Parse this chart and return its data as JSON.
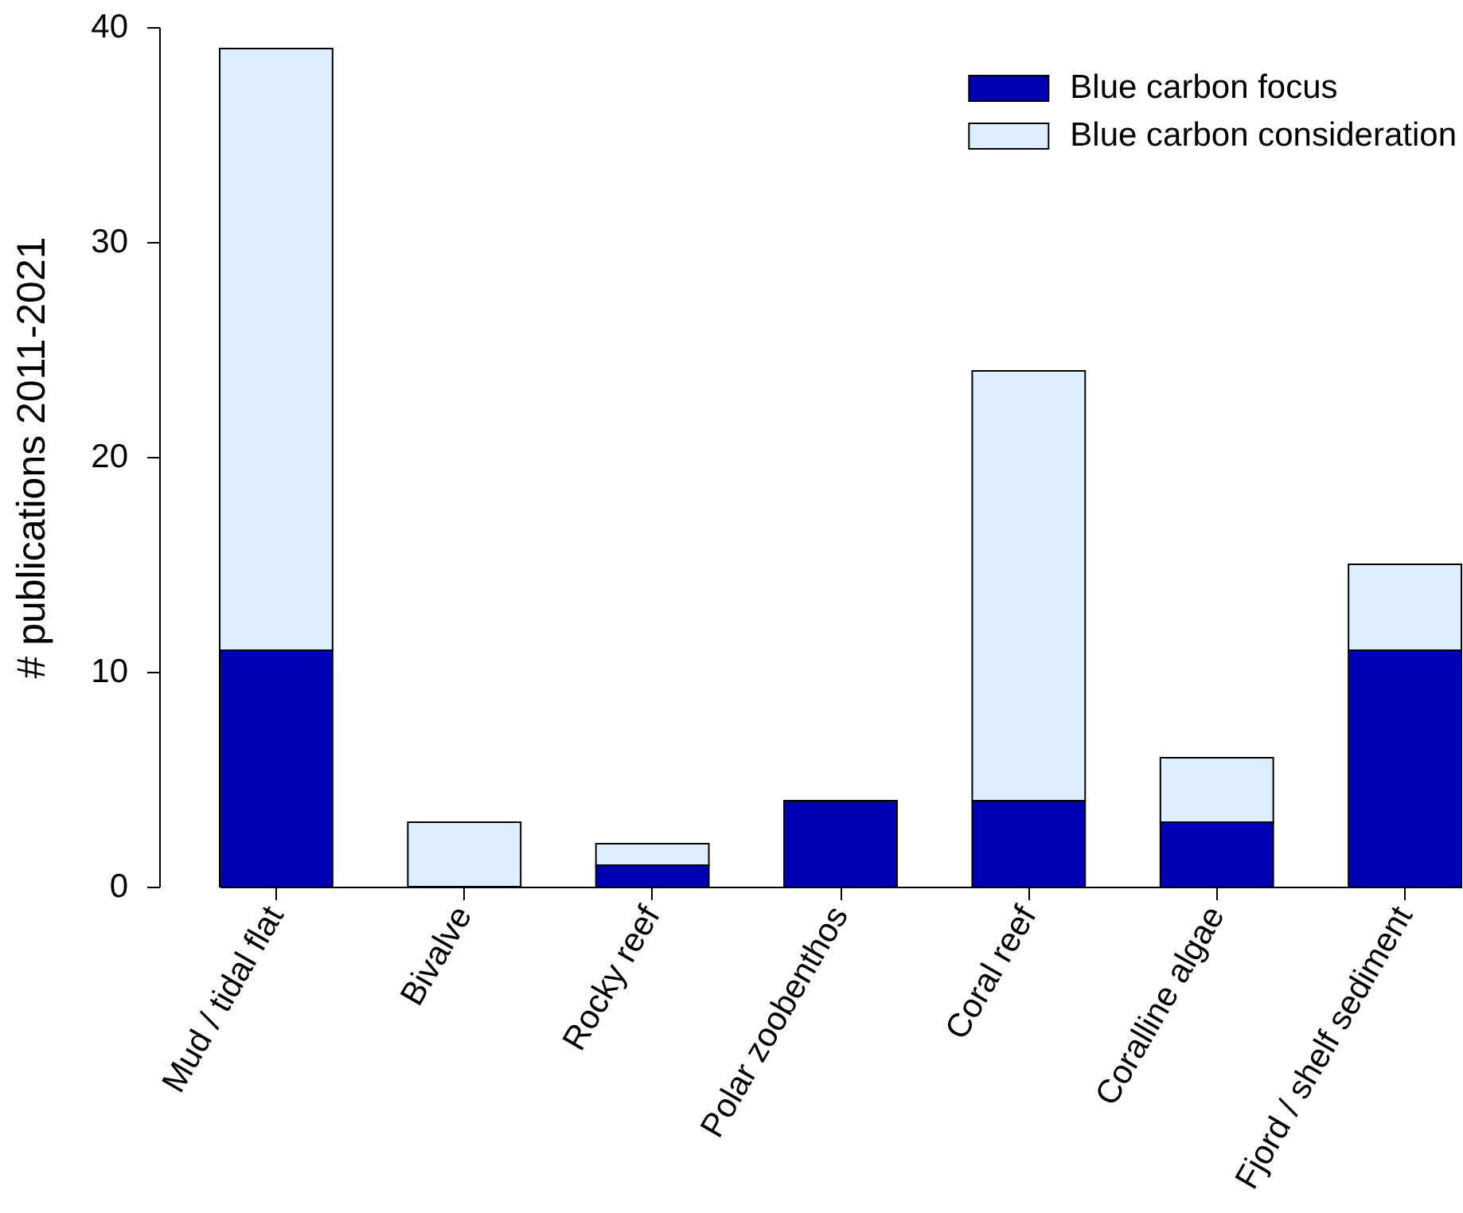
{
  "chart_data": {
    "type": "bar",
    "ylabel": "# publications 2011-2021",
    "categories": [
      "Mud / tidal flat",
      "Bivalve",
      "Rocky reef",
      "Polar zoobenthos",
      "Coral reef",
      "Coralline algae",
      "Fjord / shelf sediment"
    ],
    "series": [
      {
        "name": "Blue carbon focus",
        "color": "#0000b4",
        "values": [
          11,
          0,
          1,
          4,
          4,
          3,
          11
        ]
      },
      {
        "name": "Blue carbon consideration",
        "color": "#ddeeff",
        "values": [
          28,
          3,
          1,
          0,
          20,
          3,
          4
        ]
      }
    ],
    "stacked": true,
    "ylim": [
      0,
      40
    ],
    "yticks": [
      0,
      10,
      20,
      30,
      40
    ],
    "grid": false,
    "legend": "top right"
  }
}
